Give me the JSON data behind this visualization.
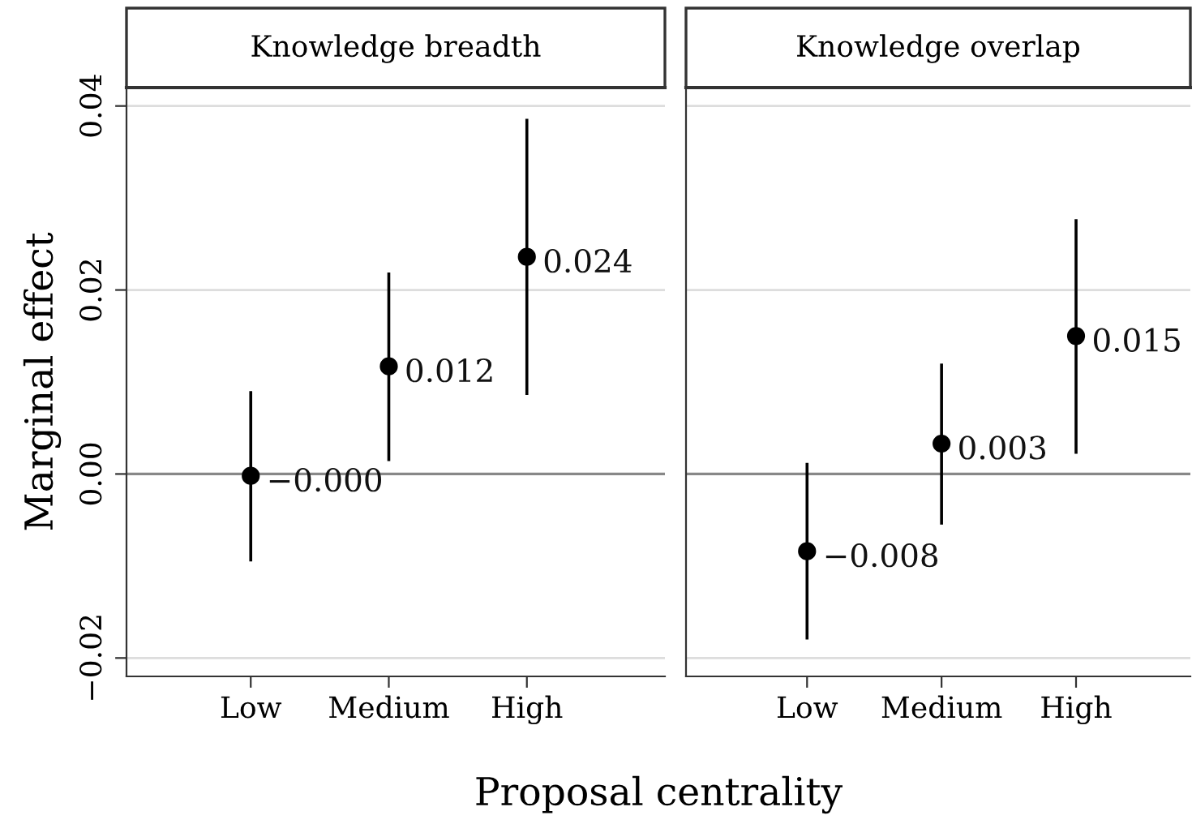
{
  "chart_data": [
    {
      "type": "scatter",
      "title": "Knowledge breadth",
      "xlabel": "Proposal centrality",
      "ylabel": "Marginal effect",
      "categories": [
        "Low",
        "Medium",
        "High"
      ],
      "series": [
        {
          "color": "#000000",
          "values": [
            -0.0002,
            0.0117,
            0.0236
          ],
          "value_labels": [
            "−0.000",
            "0.012",
            "0.024"
          ],
          "errors": [
            [
              -0.0095,
              0.009
            ],
            [
              0.0014,
              0.0219
            ],
            [
              0.0086,
              0.0386
            ]
          ]
        }
      ],
      "ylim": [
        -0.022,
        0.042
      ],
      "yticks": [
        {
          "value": -0.02,
          "label": "−0.02"
        },
        {
          "value": 0.0,
          "label": "0.00"
        },
        {
          "value": 0.02,
          "label": "0.02"
        },
        {
          "value": 0.04,
          "label": "0.04"
        }
      ],
      "ref_lines": [
        {
          "axis": "y",
          "value": 0,
          "color": "#888888"
        }
      ],
      "grid": "y",
      "marker": "circle"
    },
    {
      "type": "scatter",
      "title": "Knowledge overlap",
      "categories": [
        "Low",
        "Medium",
        "High"
      ],
      "series": [
        {
          "color": "#000000",
          "values": [
            -0.0084,
            0.0033,
            0.015
          ],
          "value_labels": [
            "−0.008",
            "0.003",
            "0.015"
          ],
          "errors": [
            [
              -0.018,
              0.0012
            ],
            [
              -0.0055,
              0.012
            ],
            [
              0.0022,
              0.0277
            ]
          ]
        }
      ],
      "ylim": [
        -0.022,
        0.042
      ],
      "yticks": [
        -0.02,
        0.0,
        0.02,
        0.04
      ],
      "ref_lines": [
        {
          "axis": "y",
          "value": 0,
          "color": "#888888"
        }
      ],
      "grid": "y",
      "marker": "circle",
      "tick_labels": "x"
    }
  ]
}
